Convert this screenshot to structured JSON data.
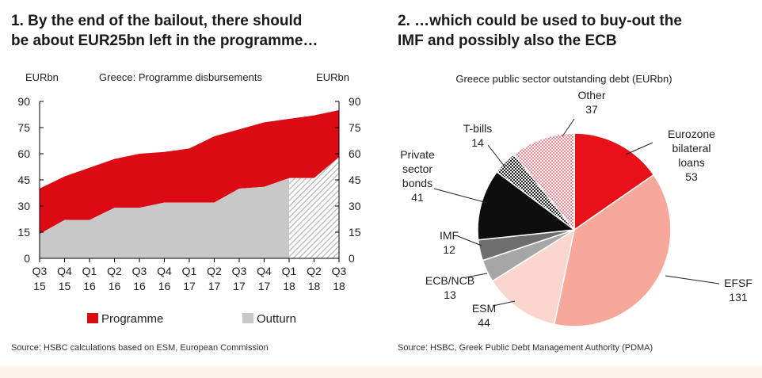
{
  "colors": {
    "programme": "#dc0a12",
    "outturn": "#c8c8c8",
    "axis": "#000000",
    "pie_eurozone": "#e8111a",
    "pie_efsf": "#f6a89a",
    "pie_esm": "#fbd6cf",
    "pie_ecb": "#a6a6a6",
    "pie_imf": "#6e6e6e",
    "pie_private": "#0d0d0d",
    "pie_tbills": "#2b2b2b",
    "pie_other": "#f2a0a0"
  },
  "left": {
    "title_line1": "1. By the end of the bailout, there should",
    "title_line2": "be about EUR25bn left in the programme…",
    "source": "Source: HSBC calculations based on ESM, European Commission"
  },
  "right": {
    "title_line1": "2. …which could be used to buy-out the",
    "title_line2": "IMF and possibly also the ECB",
    "source": "Source: HSBC, Greek Public Debt Management Authority (PDMA)"
  },
  "chart_data": [
    {
      "type": "area",
      "title": "Greece: Programme disbursements",
      "ylabel_left": "EURbn",
      "ylabel_right": "EURbn",
      "ylim": [
        0,
        90
      ],
      "yticks": [
        "0",
        "15",
        "30",
        "45",
        "60",
        "75",
        "90"
      ],
      "categories": [
        [
          "Q3",
          "15"
        ],
        [
          "Q4",
          "15"
        ],
        [
          "Q1",
          "16"
        ],
        [
          "Q2",
          "16"
        ],
        [
          "Q3",
          "16"
        ],
        [
          "Q4",
          "16"
        ],
        [
          "Q1",
          "17"
        ],
        [
          "Q2",
          "17"
        ],
        [
          "Q3",
          "17"
        ],
        [
          "Q4",
          "17"
        ],
        [
          "Q1",
          "18"
        ],
        [
          "Q2",
          "18"
        ],
        [
          "Q3",
          "18"
        ]
      ],
      "series": [
        {
          "name": "Programme",
          "values": [
            40,
            47,
            52,
            57,
            60,
            61,
            63,
            70,
            74,
            78,
            80,
            82,
            85
          ]
        },
        {
          "name": "Outturn",
          "values": [
            14,
            22,
            22,
            29,
            29,
            32,
            32,
            32,
            40,
            41,
            46,
            46,
            58
          ]
        }
      ],
      "projection_from_index": 10,
      "legend": "bottom"
    },
    {
      "type": "pie",
      "title": "Greece public sector outstanding debt (EURbn)",
      "slices": [
        {
          "label": "Eurozone bilateral loans",
          "label_lines": [
            "Eurozone",
            "bilateral",
            "loans"
          ],
          "value": 53,
          "value_text": "53"
        },
        {
          "label": "EFSF",
          "label_lines": [
            "EFSF"
          ],
          "value": 131,
          "value_text": "131"
        },
        {
          "label": "ESM",
          "label_lines": [
            "ESM"
          ],
          "value": 44,
          "value_text": "44"
        },
        {
          "label": "ECB/NCB",
          "label_lines": [
            "ECB/NCB"
          ],
          "value": 13,
          "value_text": "13"
        },
        {
          "label": "IMF",
          "label_lines": [
            "IMF"
          ],
          "value": 12,
          "value_text": "12"
        },
        {
          "label": "Private sector bonds",
          "label_lines": [
            "Private",
            "sector",
            "bonds"
          ],
          "value": 41,
          "value_text": "41"
        },
        {
          "label": "T-bills",
          "label_lines": [
            "T-bills"
          ],
          "value": 14,
          "value_text": "14"
        },
        {
          "label": "Other",
          "label_lines": [
            "Other"
          ],
          "value": 37,
          "value_text": "37"
        }
      ]
    }
  ]
}
